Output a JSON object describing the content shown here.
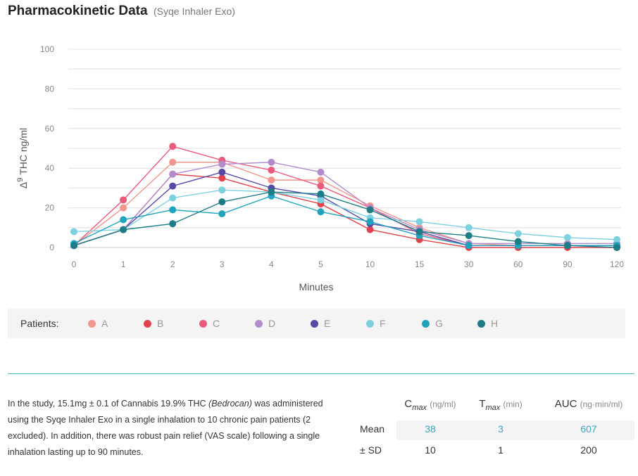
{
  "header": {
    "title": "Pharmacokinetic Data",
    "subtitle": "(Syqe Inhaler Exo)"
  },
  "chart_data": {
    "type": "line",
    "title": "Pharmacokinetic Data",
    "subtitle": "(Syqe Inhaler Exo)",
    "xlabel": "Minutes",
    "ylabel_super": "9",
    "ylabel": "THC ng/ml",
    "categories": [
      "0",
      "1",
      "2",
      "3",
      "4",
      "5",
      "10",
      "15",
      "30",
      "60",
      "90",
      "120"
    ],
    "yticks": [
      "100",
      "80",
      "60",
      "40",
      "20",
      "0"
    ],
    "ylim": [
      0,
      100
    ],
    "grid": true,
    "legend_title": "Patients:",
    "legend_position": "bottom",
    "series": [
      {
        "name": "A",
        "color": "#f2958c",
        "values": [
          1,
          20,
          43,
          43,
          34,
          34,
          21,
          10,
          2,
          1,
          1,
          1
        ]
      },
      {
        "name": "B",
        "color": "#e0434c",
        "values": [
          1,
          9,
          37,
          35,
          28,
          22,
          9,
          4,
          0,
          0,
          0,
          0
        ]
      },
      {
        "name": "C",
        "color": "#e95b7c",
        "values": [
          1,
          24,
          51,
          44,
          39,
          31,
          20,
          7,
          1,
          1,
          1,
          1
        ]
      },
      {
        "name": "D",
        "color": "#b38ccb",
        "values": [
          1,
          9,
          37,
          42,
          43,
          38,
          20,
          9,
          2,
          2,
          2,
          2
        ]
      },
      {
        "name": "E",
        "color": "#554aa5",
        "values": [
          1,
          9,
          31,
          38,
          30,
          26,
          12,
          8,
          1,
          1,
          1,
          1
        ]
      },
      {
        "name": "F",
        "color": "#7ed0df",
        "values": [
          8,
          9,
          25,
          29,
          28,
          24,
          15,
          13,
          10,
          7,
          5,
          4
        ]
      },
      {
        "name": "G",
        "color": "#21a3bd",
        "values": [
          2,
          14,
          19,
          17,
          26,
          18,
          13,
          6,
          1,
          1,
          1,
          1
        ]
      },
      {
        "name": "H",
        "color": "#1d7d86",
        "values": [
          1,
          9,
          12,
          23,
          28,
          27,
          19,
          8,
          6,
          3,
          1,
          0
        ]
      }
    ]
  },
  "description": {
    "text_1": "In the study, 15.1mg ± 0.1 of Cannabis 19.9% THC ",
    "text_italic": "(Bedrocan)",
    "text_2": " was administered using the Syqe Inhaler Exo in a single inhalation to 10 chronic pain patients (2 excluded). In addition, there was robust pain relief (VAS scale) following a single inhalation lasting up to 90 minutes."
  },
  "stats": {
    "headers": {
      "cmax": {
        "letter": "C",
        "sub": "max",
        "unit": "(ng/ml)"
      },
      "tmax": {
        "letter": "T",
        "sub": "max",
        "unit": "(min)"
      },
      "auc": {
        "letter": "AUC",
        "unit": "(ng·min/ml)"
      }
    },
    "mean": {
      "label": "Mean",
      "cmax": "38",
      "tmax": "3",
      "auc": "607"
    },
    "sd": {
      "label": "± SD",
      "cmax": "10",
      "tmax": "1",
      "auc": "200"
    }
  }
}
